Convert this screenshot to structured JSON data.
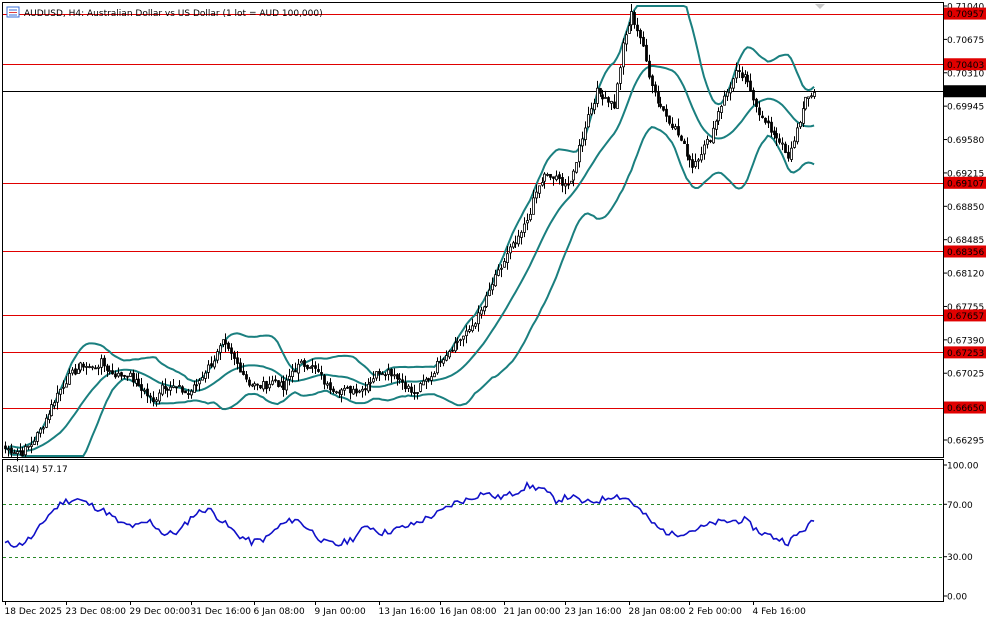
{
  "header": {
    "title": "AUDUSD, H4:  Australian Dollar vs US Dollar (1 lot = AUD 100,000)"
  },
  "rsi_label": "RSI(14) 57.17",
  "colors": {
    "candle": "#000000",
    "bollinger": "#1a7f7f",
    "level_line": "#e00000",
    "price_line": "#000000",
    "rsi": "#1010c8",
    "rsi_levels": "#2a8a2a",
    "grid_frame": "#000000"
  },
  "chart_data": [
    {
      "type": "candlestick",
      "symbol": "AUDUSD",
      "timeframe": "H4",
      "ylim": [
        0.6612,
        0.7104
      ],
      "price_ticks": [
        "0.71040",
        "0.70675",
        "0.70310",
        "0.69945",
        "0.69580",
        "0.69215",
        "0.68850",
        "0.68485",
        "0.68120",
        "0.67755",
        "0.67390",
        "0.67025",
        "0.66660",
        "0.66295"
      ],
      "x_ticks": [
        "18 Dec 2025",
        "23 Dec 08:00",
        "29 Dec 00:00",
        "31 Dec 16:00",
        "6 Jan 08:00",
        "9 Jan 00:00",
        "13 Jan 16:00",
        "16 Jan 08:00",
        "21 Jan 00:00",
        "23 Jan 16:00",
        "28 Jan 08:00",
        "2 Feb 00:00",
        "4 Feb 16:00"
      ],
      "levels": [
        "0.70957",
        "0.70403",
        "0.69107",
        "0.68356",
        "0.67657",
        "0.67253",
        "0.66650"
      ],
      "current_price": "0.70108",
      "close_path": [
        [
          0,
          0.662
        ],
        [
          3,
          0.6618
        ],
        [
          6,
          0.6616
        ],
        [
          9,
          0.6625
        ],
        [
          12,
          0.664
        ],
        [
          15,
          0.666
        ],
        [
          18,
          0.668
        ],
        [
          21,
          0.6695
        ],
        [
          24,
          0.6705
        ],
        [
          27,
          0.6712
        ],
        [
          30,
          0.6708
        ],
        [
          33,
          0.6714
        ],
        [
          36,
          0.6705
        ],
        [
          39,
          0.67
        ],
        [
          42,
          0.6702
        ],
        [
          45,
          0.6692
        ],
        [
          48,
          0.6683
        ],
        [
          51,
          0.667
        ],
        [
          54,
          0.669
        ],
        [
          57,
          0.6688
        ],
        [
          60,
          0.6685
        ],
        [
          63,
          0.668
        ],
        [
          66,
          0.669
        ],
        [
          69,
          0.6705
        ],
        [
          72,
          0.6718
        ],
        [
          75,
          0.6735
        ],
        [
          78,
          0.6722
        ],
        [
          81,
          0.6708
        ],
        [
          84,
          0.6692
        ],
        [
          87,
          0.6688
        ],
        [
          90,
          0.669
        ],
        [
          93,
          0.6695
        ],
        [
          96,
          0.6685
        ],
        [
          99,
          0.6705
        ],
        [
          102,
          0.6712
        ],
        [
          105,
          0.6712
        ],
        [
          108,
          0.6703
        ],
        [
          111,
          0.6688
        ],
        [
          114,
          0.6686
        ],
        [
          117,
          0.6683
        ],
        [
          120,
          0.6685
        ],
        [
          123,
          0.6685
        ],
        [
          126,
          0.6695
        ],
        [
          129,
          0.6705
        ],
        [
          132,
          0.6705
        ],
        [
          135,
          0.67
        ],
        [
          138,
          0.669
        ],
        [
          141,
          0.6678
        ],
        [
          144,
          0.6692
        ],
        [
          147,
          0.67
        ],
        [
          150,
          0.6718
        ],
        [
          153,
          0.6728
        ],
        [
          156,
          0.6738
        ],
        [
          159,
          0.6745
        ],
        [
          162,
          0.676
        ],
        [
          165,
          0.6775
        ],
        [
          168,
          0.68
        ],
        [
          171,
          0.6818
        ],
        [
          174,
          0.6838
        ],
        [
          177,
          0.6848
        ],
        [
          180,
          0.687
        ],
        [
          183,
          0.69
        ],
        [
          186,
          0.6918
        ],
        [
          189,
          0.6916
        ],
        [
          192,
          0.6912
        ],
        [
          195,
          0.6908
        ],
        [
          198,
          0.695
        ],
        [
          201,
          0.6985
        ],
        [
          204,
          0.701
        ],
        [
          207,
          0.7005
        ],
        [
          210,
          0.6995
        ],
        [
          213,
          0.706
        ],
        [
          216,
          0.7095
        ],
        [
          219,
          0.707
        ],
        [
          222,
          0.703
        ],
        [
          225,
          0.7
        ],
        [
          228,
          0.6985
        ],
        [
          231,
          0.697
        ],
        [
          234,
          0.695
        ],
        [
          237,
          0.693
        ],
        [
          240,
          0.6945
        ],
        [
          243,
          0.696
        ],
        [
          246,
          0.699
        ],
        [
          249,
          0.701
        ],
        [
          252,
          0.703
        ],
        [
          255,
          0.7025
        ],
        [
          258,
          0.7005
        ],
        [
          261,
          0.698
        ],
        [
          264,
          0.6968
        ],
        [
          267,
          0.6958
        ],
        [
          270,
          0.6935
        ],
        [
          273,
          0.697
        ],
        [
          276,
          0.7
        ],
        [
          279,
          0.7011
        ]
      ]
    },
    {
      "type": "line",
      "name": "RSI(14)",
      "ylim": [
        0,
        100
      ],
      "ticks": [
        "100.00",
        "70.00",
        "30.00",
        "0.00"
      ],
      "level_lines": [
        70,
        30
      ],
      "x": [
        0,
        5,
        10,
        15,
        20,
        25,
        30,
        35,
        40,
        45,
        50,
        55,
        60,
        65,
        70,
        75,
        80,
        85,
        90,
        95,
        100,
        105,
        110,
        115,
        120,
        125,
        130,
        135,
        140,
        145,
        150,
        155,
        160,
        165,
        170,
        175,
        180,
        185,
        190,
        195,
        200,
        205,
        210,
        215,
        220,
        225,
        230,
        235,
        240,
        245,
        250,
        255,
        260,
        265,
        270,
        275,
        279
      ],
      "values": [
        40,
        39,
        46,
        62,
        72,
        74,
        69,
        64,
        55,
        53,
        57,
        47,
        49,
        62,
        67,
        57,
        47,
        41,
        44,
        54,
        59,
        51,
        41,
        39,
        44,
        54,
        48,
        51,
        54,
        59,
        64,
        71,
        74,
        79,
        75,
        78,
        84,
        82,
        73,
        76,
        71,
        73,
        77,
        74,
        63,
        52,
        47,
        49,
        52,
        56,
        57,
        58,
        49,
        45,
        41,
        50,
        57.17
      ]
    }
  ]
}
